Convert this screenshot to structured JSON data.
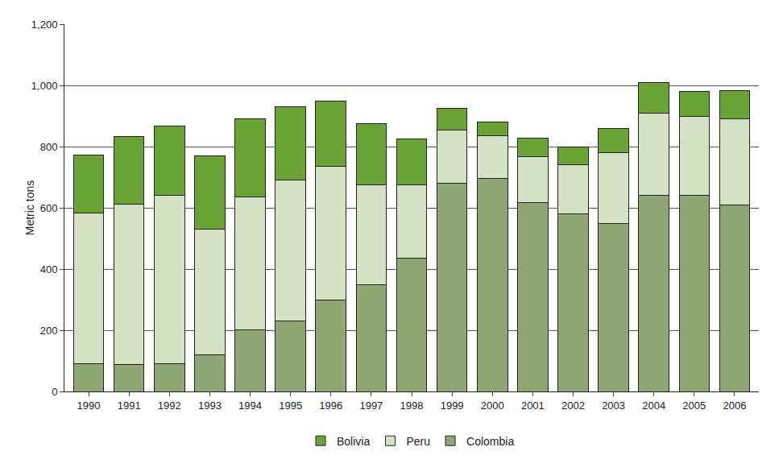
{
  "chart_data": {
    "type": "bar",
    "stacked": true,
    "y_label": "Metric tons",
    "categories": [
      "1990",
      "1991",
      "1992",
      "1993",
      "1994",
      "1995",
      "1996",
      "1997",
      "1998",
      "1999",
      "2000",
      "2001",
      "2002",
      "2003",
      "2004",
      "2005",
      "2006"
    ],
    "series": [
      {
        "name": "Colombia",
        "color": "#8fa873",
        "values": [
          92,
          88,
          91,
          119,
          201,
          230,
          300,
          350,
          435,
          680,
          695,
          617,
          580,
          550,
          640,
          640,
          610
        ]
      },
      {
        "name": "Peru",
        "color": "#d5e2c6",
        "values": [
          492,
          525,
          550,
          410,
          435,
          460,
          435,
          325,
          240,
          175,
          141,
          150,
          160,
          230,
          270,
          260,
          280
        ]
      },
      {
        "name": "Bolivia",
        "color": "#6aa336",
        "values": [
          189,
          220,
          225,
          240,
          255,
          240,
          215,
          200,
          150,
          70,
          43,
          60,
          60,
          79,
          98,
          80,
          94
        ]
      }
    ],
    "ylim": [
      0,
      1200
    ],
    "yticks": [
      0,
      200,
      400,
      600,
      800,
      {
        "value": 1000,
        "label": "1,000"
      },
      {
        "value": 1200,
        "label": "1,200"
      }
    ],
    "grid": true,
    "legend": "bottom"
  }
}
